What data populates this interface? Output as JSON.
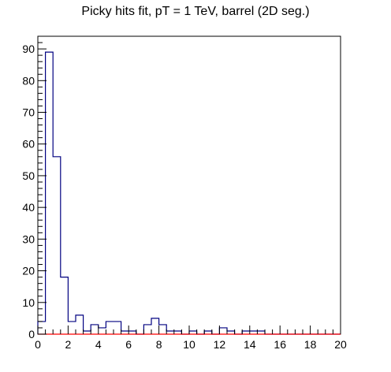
{
  "chart_data": {
    "type": "bar",
    "style": "step-histogram",
    "title": "Picky hits fit, pT = 1 TeV, barrel (2D seg.)",
    "xlabel": "",
    "ylabel": "",
    "xlim": [
      0,
      20
    ],
    "ylim": [
      0,
      94
    ],
    "x_ticks": [
      "0",
      "2",
      "4",
      "6",
      "8",
      "10",
      "12",
      "14",
      "16",
      "18",
      "20"
    ],
    "y_ticks": [
      "0",
      "10",
      "20",
      "30",
      "40",
      "50",
      "60",
      "70",
      "80",
      "90"
    ],
    "bin_width": 0.5,
    "bin_edges_start": 0,
    "series": [
      {
        "color": "#000080",
        "values": [
          4,
          89,
          56,
          18,
          4,
          6,
          1,
          3,
          2,
          4,
          4,
          1,
          1,
          0,
          3,
          5,
          3,
          1,
          1,
          0,
          1,
          0,
          1,
          0,
          2,
          1,
          0,
          1,
          1,
          1,
          0,
          0,
          0,
          0,
          0,
          0,
          0,
          0,
          0,
          0
        ]
      },
      {
        "color": "#ff0000",
        "values": [
          0,
          0,
          0,
          0,
          0,
          0,
          0,
          0,
          0,
          0,
          0,
          0,
          0,
          0,
          0,
          0,
          0,
          0,
          0,
          0,
          0,
          0,
          0,
          0,
          0,
          0,
          0,
          0,
          0,
          0,
          0,
          0,
          0,
          0,
          0,
          0,
          0,
          0,
          0,
          0
        ]
      }
    ],
    "grid": false,
    "legend": "none"
  }
}
